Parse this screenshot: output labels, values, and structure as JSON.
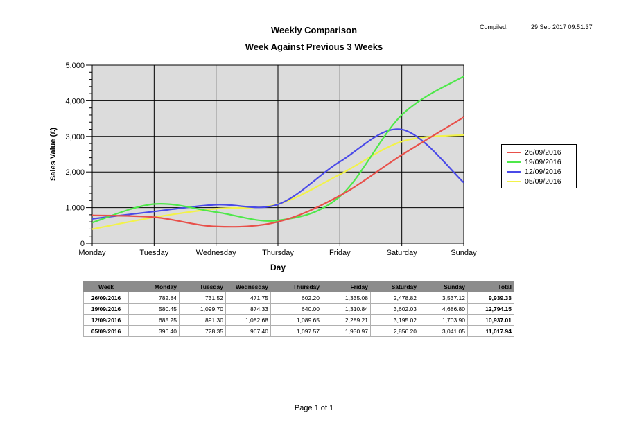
{
  "header": {
    "title": "Weekly Comparison",
    "subtitle": "Week Against Previous 3 Weeks",
    "compiled_label": "Compiled:",
    "compiled_value": "29 Sep 2017 09:51:37"
  },
  "chart_data": {
    "type": "line",
    "title": "Weekly Comparison",
    "subtitle": "Week Against Previous 3 Weeks",
    "xlabel": "Day",
    "ylabel": "Sales Value (£)",
    "categories": [
      "Monday",
      "Tuesday",
      "Wednesday",
      "Thursday",
      "Friday",
      "Saturday",
      "Sunday"
    ],
    "ylim": [
      0,
      5000
    ],
    "yticks": [
      "0",
      "1,000",
      "2,000",
      "3,000",
      "4,000",
      "5,000"
    ],
    "grid": true,
    "legend_position": "right",
    "series": [
      {
        "name": "26/09/2016",
        "color": "#e8504a",
        "values": [
          782.84,
          731.52,
          471.75,
          602.2,
          1335.08,
          2478.82,
          3537.12
        ]
      },
      {
        "name": "19/09/2016",
        "color": "#4ee84a",
        "values": [
          580.45,
          1099.7,
          874.33,
          640.0,
          1310.84,
          3602.03,
          4686.8
        ]
      },
      {
        "name": "12/09/2016",
        "color": "#4a4ae8",
        "values": [
          685.25,
          891.3,
          1082.68,
          1089.65,
          2289.21,
          3195.02,
          1703.9
        ]
      },
      {
        "name": "05/09/2016",
        "color": "#f2f24a",
        "values": [
          396.4,
          728.35,
          967.4,
          1097.57,
          1930.97,
          2856.2,
          3041.05
        ]
      }
    ]
  },
  "table": {
    "headers": [
      "Week",
      "Monday",
      "Tuesday",
      "Wednesday",
      "Thursday",
      "Friday",
      "Saturday",
      "Sunday",
      "Total"
    ],
    "rows": [
      [
        "26/09/2016",
        "782.84",
        "731.52",
        "471.75",
        "602.20",
        "1,335.08",
        "2,478.82",
        "3,537.12",
        "9,939.33"
      ],
      [
        "19/09/2016",
        "580.45",
        "1,099.70",
        "874.33",
        "640.00",
        "1,310.84",
        "3,602.03",
        "4,686.80",
        "12,794.15"
      ],
      [
        "12/09/2016",
        "685.25",
        "891.30",
        "1,082.68",
        "1,089.65",
        "2,289.21",
        "3,195.02",
        "1,703.90",
        "10,937.01"
      ],
      [
        "05/09/2016",
        "396.40",
        "728.35",
        "967.40",
        "1,097.57",
        "1,930.97",
        "2,856.20",
        "3,041.05",
        "11,017.94"
      ]
    ]
  },
  "footer": {
    "page": "Page 1 of 1"
  }
}
